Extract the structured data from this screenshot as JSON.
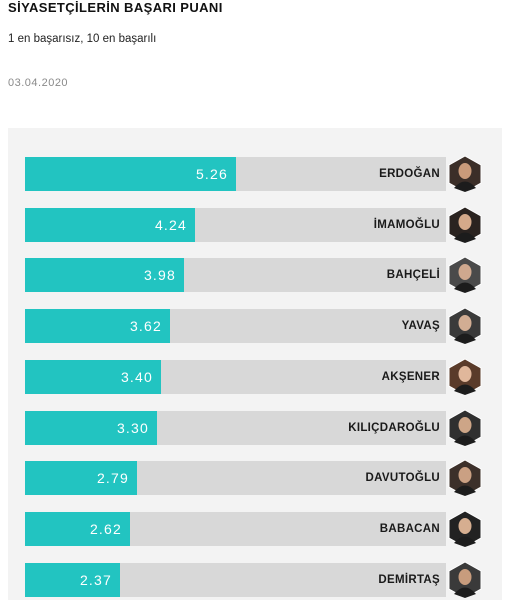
{
  "header": {
    "title": "SİYASETÇİLERİN BAŞARI PUANI",
    "subtitle": "1 en başarısız, 10 en başarılı",
    "date": "03.04.2020"
  },
  "colors": {
    "bar": "#22c4c1",
    "track": "#d8d8d8",
    "panel": "#f3f3f3"
  },
  "chart_data": {
    "type": "bar",
    "orientation": "horizontal",
    "title": "SİYASETÇİLERİN BAŞARI PUANI",
    "subtitle": "1 en başarısız, 10 en başarılı",
    "xlim": [
      0,
      10
    ],
    "categories": [
      "ERDOĞAN",
      "İMAMOĞLU",
      "BAHÇELİ",
      "YAVAŞ",
      "AKŞENER",
      "KILIÇDAROĞLU",
      "DAVUTOĞLU",
      "BABACAN",
      "DEMİRTAŞ"
    ],
    "value_labels": [
      "5.26",
      "4.24",
      "3.98",
      "3.62",
      "3.40",
      "3.30",
      "2.79",
      "2.62",
      "2.37"
    ],
    "values": [
      5.26,
      4.24,
      3.98,
      3.62,
      3.4,
      3.3,
      2.79,
      2.62,
      2.37
    ],
    "icons": [
      "portrait-icon",
      "portrait-icon",
      "portrait-icon",
      "portrait-icon",
      "portrait-icon",
      "portrait-icon",
      "portrait-icon",
      "portrait-icon",
      "portrait-icon"
    ]
  }
}
